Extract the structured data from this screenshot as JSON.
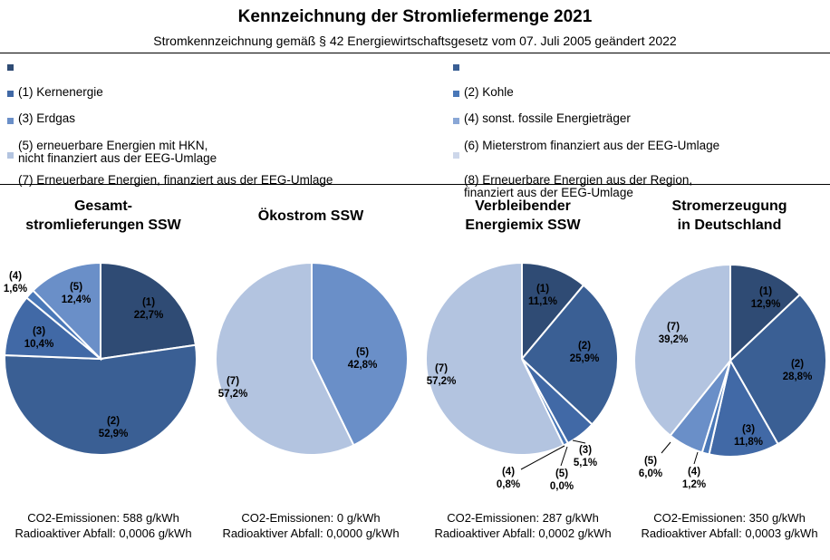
{
  "title": "Kennzeichnung der Stromliefermenge 2021",
  "subtitle": "Stromkennzeichnung gemäß § 42 Energiewirtschaftsgesetz vom 07. Juli 2005 geändert 2022",
  "legend": [
    {
      "id": "1",
      "label": "(1) Kernenergie",
      "color": "#2f4b74"
    },
    {
      "id": "2",
      "label": "(2) Kohle",
      "color": "#3a5f94"
    },
    {
      "id": "3",
      "label": "(3) Erdgas",
      "color": "#4169a6"
    },
    {
      "id": "4",
      "label": "(4) sonst. fossile Energieträger",
      "color": "#4a78b8"
    },
    {
      "id": "5",
      "label": "(5) erneuerbare Energien mit HKN,\nnicht finanziert aus der EEG-Umlage",
      "color": "#6a8fc8"
    },
    {
      "id": "6",
      "label": "(6) Mieterstrom finanziert aus der EEG-Umlage",
      "color": "#8aa7d6"
    },
    {
      "id": "7",
      "label": "(7) Erneuerbare Energien, finanziert aus der EEG-Umlage",
      "color": "#b3c4e0"
    },
    {
      "id": "8",
      "label": "(8) Erneuerbare Energien aus der Region,\nfinanziert aus der EEG-Umlage",
      "color": "#cdd7ea"
    }
  ],
  "chart_data": [
    {
      "type": "pie",
      "title": "Gesamt-\nstromlieferungen SSW",
      "slices": [
        {
          "cat": "1",
          "name": "(1)",
          "value": 22.7,
          "label": "22,7%"
        },
        {
          "cat": "2",
          "name": "(2)",
          "value": 52.9,
          "label": "52,9%"
        },
        {
          "cat": "3",
          "name": "(3)",
          "value": 10.4,
          "label": "10,4%"
        },
        {
          "cat": "4",
          "name": "(4)",
          "value": 1.6,
          "label": "1,6%"
        },
        {
          "cat": "5",
          "name": "(5)",
          "value": 12.4,
          "label": "12,4%"
        }
      ],
      "co2": "CO2-Emissionen: 588 g/kWh",
      "waste": "Radioaktiver Abfall: 0,0006 g/kWh"
    },
    {
      "type": "pie",
      "title": "Ökostrom SSW",
      "slices": [
        {
          "cat": "5",
          "name": "(5)",
          "value": 42.8,
          "label": "42,8%"
        },
        {
          "cat": "7",
          "name": "(7)",
          "value": 57.2,
          "label": "57,2%"
        }
      ],
      "co2": "CO2-Emissionen: 0 g/kWh",
      "waste": "Radioaktiver Abfall: 0,0000 g/kWh"
    },
    {
      "type": "pie",
      "title": "Verbleibender\nEnergiemix SSW",
      "slices": [
        {
          "cat": "1",
          "name": "(1)",
          "value": 11.1,
          "label": "11,1%"
        },
        {
          "cat": "2",
          "name": "(2)",
          "value": 25.9,
          "label": "25,9%"
        },
        {
          "cat": "3",
          "name": "(3)",
          "value": 5.1,
          "label": "5,1%"
        },
        {
          "cat": "5",
          "name": "(5)",
          "value": 0.0,
          "label": "0,0%"
        },
        {
          "cat": "4",
          "name": "(4)",
          "value": 0.8,
          "label": "0,8%"
        },
        {
          "cat": "7",
          "name": "(7)",
          "value": 57.2,
          "label": "57,2%"
        }
      ],
      "co2": "CO2-Emissionen: 287 g/kWh",
      "waste": "Radioaktiver Abfall: 0,0002 g/kWh"
    },
    {
      "type": "pie",
      "title": "Stromerzeugung\nin Deutschland",
      "slices": [
        {
          "cat": "1",
          "name": "(1)",
          "value": 12.9,
          "label": "12,9%"
        },
        {
          "cat": "2",
          "name": "(2)",
          "value": 28.8,
          "label": "28,8%"
        },
        {
          "cat": "3",
          "name": "(3)",
          "value": 11.8,
          "label": "11,8%"
        },
        {
          "cat": "4",
          "name": "(4)",
          "value": 1.2,
          "label": "1,2%"
        },
        {
          "cat": "5",
          "name": "(5)",
          "value": 6.0,
          "label": "6,0%"
        },
        {
          "cat": "7",
          "name": "(7)",
          "value": 39.2,
          "label": "39,2%"
        }
      ],
      "co2": "CO2-Emissionen: 350 g/kWh",
      "waste": "Radioaktiver Abfall: 0,0003 g/kWh"
    }
  ]
}
